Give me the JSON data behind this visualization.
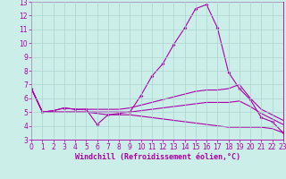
{
  "xlabel": "Windchill (Refroidissement éolien,°C)",
  "background_color": "#cceee8",
  "grid_color": "#aad4cc",
  "line_color": "#aa00aa",
  "xlim": [
    0,
    23
  ],
  "ylim": [
    3,
    13
  ],
  "xticks": [
    0,
    1,
    2,
    3,
    4,
    5,
    6,
    7,
    8,
    9,
    10,
    11,
    12,
    13,
    14,
    15,
    16,
    17,
    18,
    19,
    20,
    21,
    22,
    23
  ],
  "yticks": [
    3,
    4,
    5,
    6,
    7,
    8,
    9,
    10,
    11,
    12,
    13
  ],
  "line1_x": [
    0,
    1,
    2,
    3,
    4,
    5,
    6,
    7,
    8,
    9,
    10,
    11,
    12,
    13,
    14,
    15,
    16,
    17,
    18,
    19,
    20,
    21,
    22,
    23
  ],
  "line1_y": [
    6.7,
    5.0,
    5.1,
    5.3,
    5.2,
    5.2,
    4.1,
    4.8,
    4.9,
    5.0,
    6.2,
    7.6,
    8.5,
    9.9,
    11.1,
    12.5,
    12.8,
    11.1,
    7.9,
    6.7,
    5.9,
    4.6,
    4.3,
    3.5
  ],
  "line2_x": [
    0,
    1,
    2,
    3,
    4,
    5,
    6,
    7,
    8,
    9,
    10,
    11,
    12,
    13,
    14,
    15,
    16,
    17,
    18,
    19,
    20,
    21,
    22,
    23
  ],
  "line2_y": [
    6.7,
    5.0,
    5.1,
    5.3,
    5.2,
    5.2,
    5.2,
    5.2,
    5.2,
    5.3,
    5.5,
    5.7,
    5.9,
    6.1,
    6.3,
    6.5,
    6.6,
    6.6,
    6.7,
    7.0,
    6.0,
    5.2,
    4.8,
    4.4
  ],
  "line3_x": [
    0,
    1,
    2,
    3,
    4,
    5,
    6,
    7,
    8,
    9,
    10,
    11,
    12,
    13,
    14,
    15,
    16,
    17,
    18,
    19,
    20,
    21,
    22,
    23
  ],
  "line3_y": [
    6.7,
    5.0,
    5.0,
    5.0,
    5.0,
    5.0,
    5.0,
    5.0,
    5.0,
    5.0,
    5.1,
    5.2,
    5.3,
    5.4,
    5.5,
    5.6,
    5.7,
    5.7,
    5.7,
    5.8,
    5.4,
    4.9,
    4.5,
    4.1
  ],
  "line4_x": [
    0,
    1,
    2,
    3,
    4,
    5,
    6,
    7,
    8,
    9,
    10,
    11,
    12,
    13,
    14,
    15,
    16,
    17,
    18,
    19,
    20,
    21,
    22,
    23
  ],
  "line4_y": [
    6.7,
    5.0,
    5.0,
    5.0,
    5.0,
    5.0,
    4.9,
    4.8,
    4.8,
    4.8,
    4.7,
    4.6,
    4.5,
    4.4,
    4.3,
    4.2,
    4.1,
    4.0,
    3.9,
    3.9,
    3.9,
    3.9,
    3.8,
    3.5
  ],
  "tick_fontsize": 5.5,
  "xlabel_fontsize": 6.0
}
